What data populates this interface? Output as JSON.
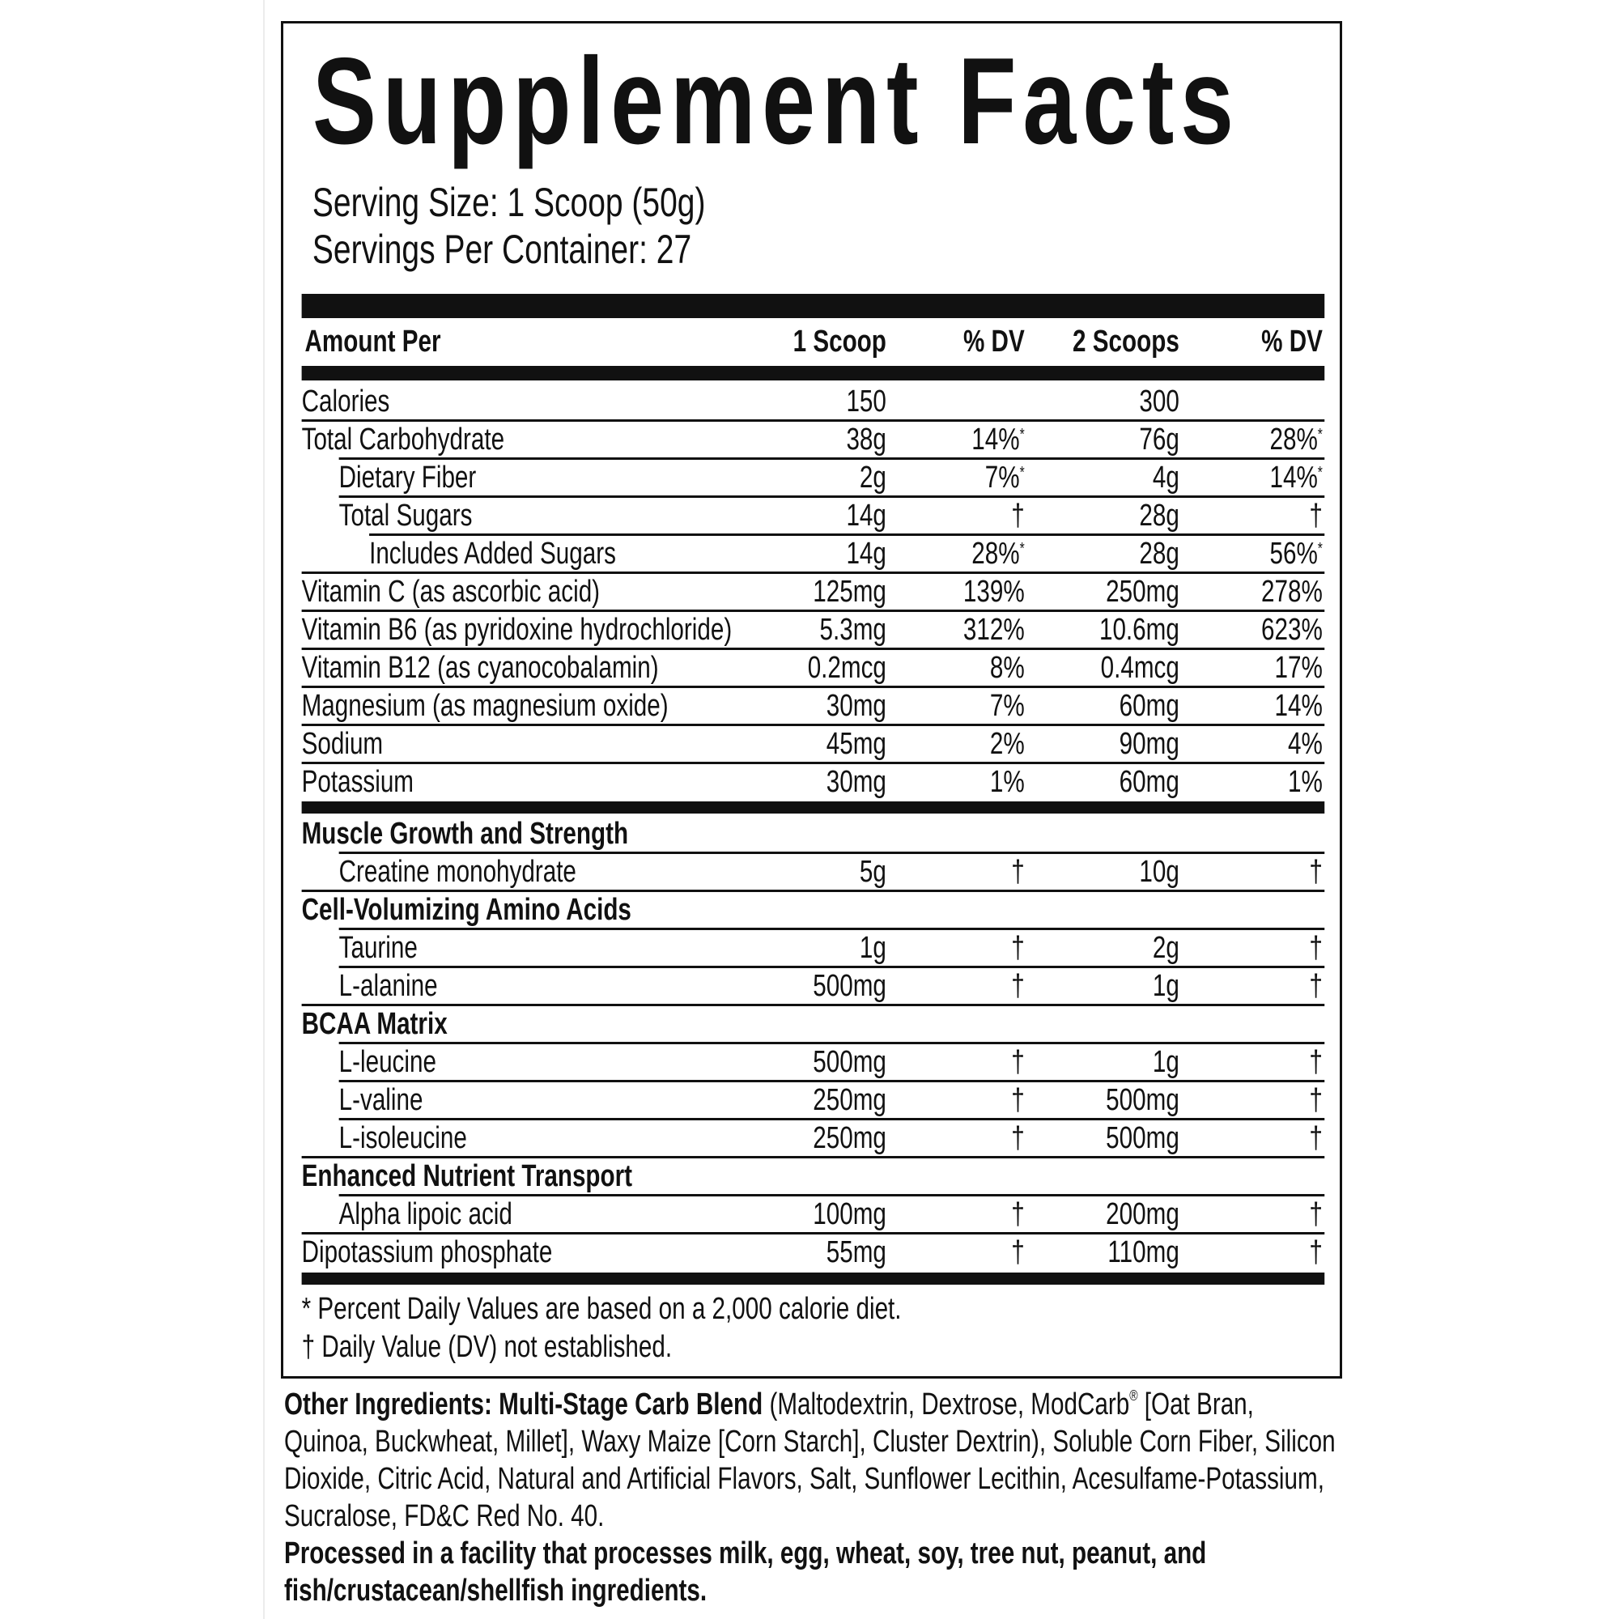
{
  "title": "Supplement Facts",
  "serving_size": "Serving Size: 1 Scoop (50g)",
  "servings_per_container": "Servings Per Container: 27",
  "header": {
    "amount_per": "Amount Per",
    "col1": "1 Scoop",
    "dv1": "% DV",
    "col2": "2 Scoops",
    "dv2": "% DV"
  },
  "nutrients": [
    {
      "name": "Calories",
      "indent": 0,
      "a1": "150",
      "d1": "",
      "m1": "",
      "a2": "300",
      "d2": "",
      "m2": ""
    },
    {
      "name": "Total Carbohydrate",
      "indent": 0,
      "a1": "38g",
      "d1": "14%",
      "m1": "*",
      "a2": "76g",
      "d2": "28%",
      "m2": "*"
    },
    {
      "name": "Dietary Fiber",
      "indent": 1,
      "a1": "2g",
      "d1": "7%",
      "m1": "*",
      "a2": "4g",
      "d2": "14%",
      "m2": "*"
    },
    {
      "name": "Total Sugars",
      "indent": 1,
      "a1": "14g",
      "d1": "†",
      "m1": "",
      "a2": "28g",
      "d2": "†",
      "m2": ""
    },
    {
      "name": "Includes Added Sugars",
      "indent": 2,
      "a1": "14g",
      "d1": "28%",
      "m1": "*",
      "a2": "28g",
      "d2": "56%",
      "m2": "*"
    },
    {
      "name": "Vitamin C (as ascorbic acid)",
      "indent": 0,
      "a1": "125mg",
      "d1": "139%",
      "m1": "",
      "a2": "250mg",
      "d2": "278%",
      "m2": ""
    },
    {
      "name": "Vitamin B6 (as pyridoxine hydrochloride)",
      "indent": 0,
      "a1": "5.3mg",
      "d1": "312%",
      "m1": "",
      "a2": "10.6mg",
      "d2": "623%",
      "m2": ""
    },
    {
      "name": "Vitamin B12 (as cyanocobalamin)",
      "indent": 0,
      "a1": "0.2mcg",
      "d1": "8%",
      "m1": "",
      "a2": "0.4mcg",
      "d2": "17%",
      "m2": ""
    },
    {
      "name": "Magnesium (as magnesium oxide)",
      "indent": 0,
      "a1": "30mg",
      "d1": "7%",
      "m1": "",
      "a2": "60mg",
      "d2": "14%",
      "m2": ""
    },
    {
      "name": "Sodium",
      "indent": 0,
      "a1": "45mg",
      "d1": "2%",
      "m1": "",
      "a2": "90mg",
      "d2": "4%",
      "m2": ""
    },
    {
      "name": "Potassium",
      "indent": 0,
      "a1": "30mg",
      "d1": "1%",
      "m1": "",
      "a2": "60mg",
      "d2": "1%",
      "m2": ""
    }
  ],
  "blends": [
    {
      "name": "Muscle Growth and Strength",
      "heading": true,
      "indent": 0
    },
    {
      "name": "Creatine monohydrate",
      "indent": 1,
      "a1": "5g",
      "d1": "†",
      "a2": "10g",
      "d2": "†"
    },
    {
      "name": "Cell-Volumizing Amino Acids",
      "heading": true,
      "indent": 0
    },
    {
      "name": "Taurine",
      "indent": 1,
      "a1": "1g",
      "d1": "†",
      "a2": "2g",
      "d2": "†"
    },
    {
      "name": "L-alanine",
      "indent": 1,
      "a1": "500mg",
      "d1": "†",
      "a2": "1g",
      "d2": "†"
    },
    {
      "name": "BCAA Matrix",
      "heading": true,
      "indent": 0
    },
    {
      "name": "L-leucine",
      "indent": 1,
      "a1": "500mg",
      "d1": "†",
      "a2": "1g",
      "d2": "†"
    },
    {
      "name": "L-valine",
      "indent": 1,
      "a1": "250mg",
      "d1": "†",
      "a2": "500mg",
      "d2": "†"
    },
    {
      "name": "L-isoleucine",
      "indent": 1,
      "a1": "250mg",
      "d1": "†",
      "a2": "500mg",
      "d2": "†"
    },
    {
      "name": "Enhanced Nutrient Transport",
      "heading": true,
      "indent": 0
    },
    {
      "name": "Alpha lipoic acid",
      "indent": 1,
      "a1": "100mg",
      "d1": "†",
      "a2": "200mg",
      "d2": "†"
    },
    {
      "name": "Dipotassium phosphate",
      "indent": 0,
      "a1": "55mg",
      "d1": "†",
      "a2": "110mg",
      "d2": "†"
    }
  ],
  "footnotes": [
    "* Percent Daily Values are based on a 2,000 calorie diet.",
    "† Daily Value (DV) not established."
  ],
  "other_ingredients": {
    "label": "Other Ingredients:",
    "blend_name": "Multi-Stage Carb Blend",
    "text_before_mark": "(Maltodextrin, Dextrose, ModCarb",
    "mark": "®",
    "text_after_mark": " [Oat Bran, Quinoa, Buckwheat, Millet], Waxy Maize [Corn Starch], Cluster Dextrin), Soluble Corn Fiber, Silicon Dioxide, Citric Acid, Natural and Artificial Flavors, Salt, Sunflower Lecithin, Acesulfame-Potassium, Sucralose, FD&C Red No. 40.",
    "allergen": "Processed in a facility that processes milk, egg, wheat, soy, tree nut, peanut, and fish/crustacean/shellfish ingredients."
  }
}
